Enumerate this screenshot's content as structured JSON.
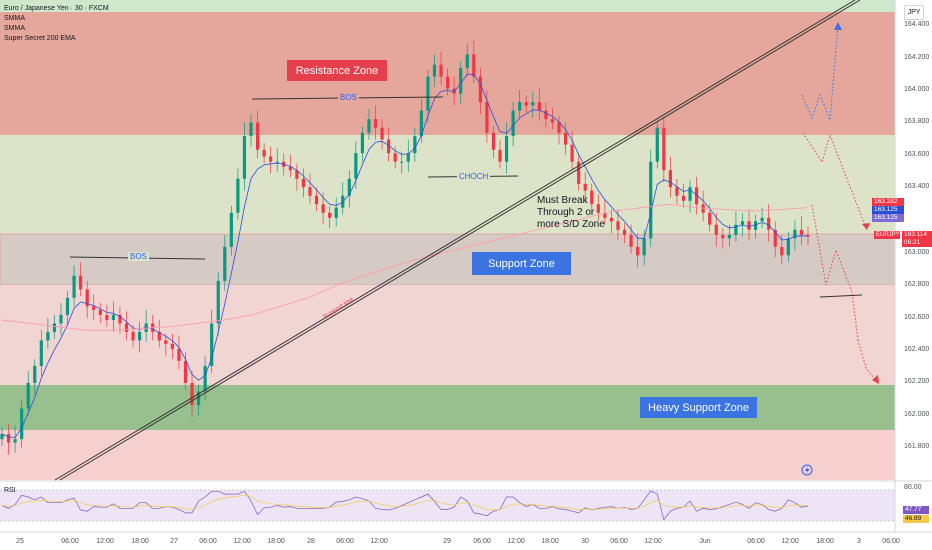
{
  "header": {
    "title": "Euro / Japanese Yen · 30 · FXCM",
    "indicators": [
      "SMMA",
      "SMMA",
      "Super Secret 200 EMA"
    ],
    "currency": "JPY"
  },
  "zones": {
    "resistance": "Resistance Zone",
    "support": "Support Zone",
    "heavy_support": "Heavy Support Zone"
  },
  "annotations": {
    "bos_left": "BOS",
    "bos_top": "BOS",
    "choch": "CHOCH",
    "support_line": "Support line",
    "note": "Must Break\nThrough 2 or\nmore S/D Zone"
  },
  "price_labels": {
    "p1": "163.282",
    "p2": "163.125",
    "p3": "163.125",
    "symbol": "EURJPY",
    "last": "163.114",
    "countdown": "06:21"
  },
  "rsi": {
    "label": "RSI",
    "upper": "80.00",
    "value": "47.77",
    "ma": "46.89"
  },
  "colors": {
    "resistance": "#e53f4c",
    "zone_blue": "#3b74e0",
    "up_candle": "#089981",
    "down_candle": "#f23645",
    "ema": "#ff9bb0",
    "smma_blue": "#2a4fd6",
    "rsi_line": "#7e57c2"
  },
  "chart_data": {
    "type": "line",
    "title": "Euro / Japanese Yen · 30 · FXCM",
    "ylabel": "",
    "xlabel": "",
    "ylim": [
      161.68,
      164.5
    ],
    "y_ticks": [
      "164.400",
      "164.200",
      "164.000",
      "163.800",
      "163.600",
      "163.400",
      "163.200",
      "163.000",
      "162.800",
      "162.600",
      "162.400",
      "162.200",
      "162.000",
      "161.800"
    ],
    "x_ticks": [
      "25",
      "06:00",
      "12:00",
      "18:00",
      "27",
      "06:00",
      "12:00",
      "18:00",
      "28",
      "06:00",
      "12:00",
      "29",
      "06:00",
      "12:00",
      "18:00",
      "30",
      "06:00",
      "12:00",
      "Jun",
      "06:00",
      "12:00",
      "18:00",
      "3",
      "06:00"
    ],
    "series": [
      {
        "name": "",
        "values": [
          161.95,
          161.9,
          161.92,
          162.1,
          162.25,
          162.35,
          162.5,
          162.55,
          162.6,
          162.65,
          162.75,
          162.88,
          162.8,
          162.7,
          162.68,
          162.65,
          162.62,
          162.65,
          162.6,
          162.55,
          162.5,
          162.55,
          162.6,
          162.55,
          162.5,
          162.48,
          162.45,
          162.38,
          162.25,
          162.12,
          162.2,
          162.35,
          162.6,
          162.85,
          163.05,
          163.25,
          163.45,
          163.7,
          163.78,
          163.62,
          163.58,
          163.55,
          163.55,
          163.52,
          163.5,
          163.45,
          163.4,
          163.35,
          163.3,
          163.25,
          163.22,
          163.28,
          163.35,
          163.45,
          163.6,
          163.72,
          163.8,
          163.75,
          163.68,
          163.6,
          163.55,
          163.55,
          163.6,
          163.7,
          163.85,
          164.05,
          164.12,
          164.05,
          163.98,
          163.95,
          164.1,
          164.18,
          164.05,
          163.9,
          163.72,
          163.62,
          163.55,
          163.7,
          163.85,
          163.9,
          163.88,
          163.9,
          163.85,
          163.8,
          163.78,
          163.72,
          163.65,
          163.55,
          163.42,
          163.38,
          163.3,
          163.25,
          163.22,
          163.2,
          163.15,
          163.12,
          163.05,
          163.0,
          163.1,
          163.55,
          163.75,
          163.5,
          163.4,
          163.35,
          163.32,
          163.4,
          163.3,
          163.25,
          163.18,
          163.12,
          163.1,
          163.12,
          163.18,
          163.2,
          163.15,
          163.2,
          163.22,
          163.15,
          163.05,
          163.0,
          163.1,
          163.15,
          163.12,
          163.11
        ]
      },
      {
        "name": "Super Secret 200 EMA",
        "values": [
          162.62,
          162.6,
          162.58,
          162.56,
          162.56,
          162.57,
          162.58,
          162.6,
          162.62,
          162.65,
          162.7,
          162.75,
          162.82,
          162.88,
          162.93,
          162.98,
          163.02,
          163.06,
          163.1,
          163.14,
          163.18,
          163.22,
          163.26,
          163.28,
          163.3,
          163.28,
          163.27,
          163.26,
          163.27,
          163.28
        ]
      }
    ],
    "zones": [
      {
        "name": "Resistance Zone",
        "range": [
          163.76,
          164.45
        ]
      },
      {
        "name": "Support Zone",
        "range": [
          162.82,
          163.11
        ]
      },
      {
        "name": "Heavy Support Zone",
        "range": [
          161.94,
          162.2
        ]
      }
    ],
    "rsi": {
      "range": [
        20,
        80
      ],
      "value": 47.77,
      "ma": 46.89
    }
  }
}
